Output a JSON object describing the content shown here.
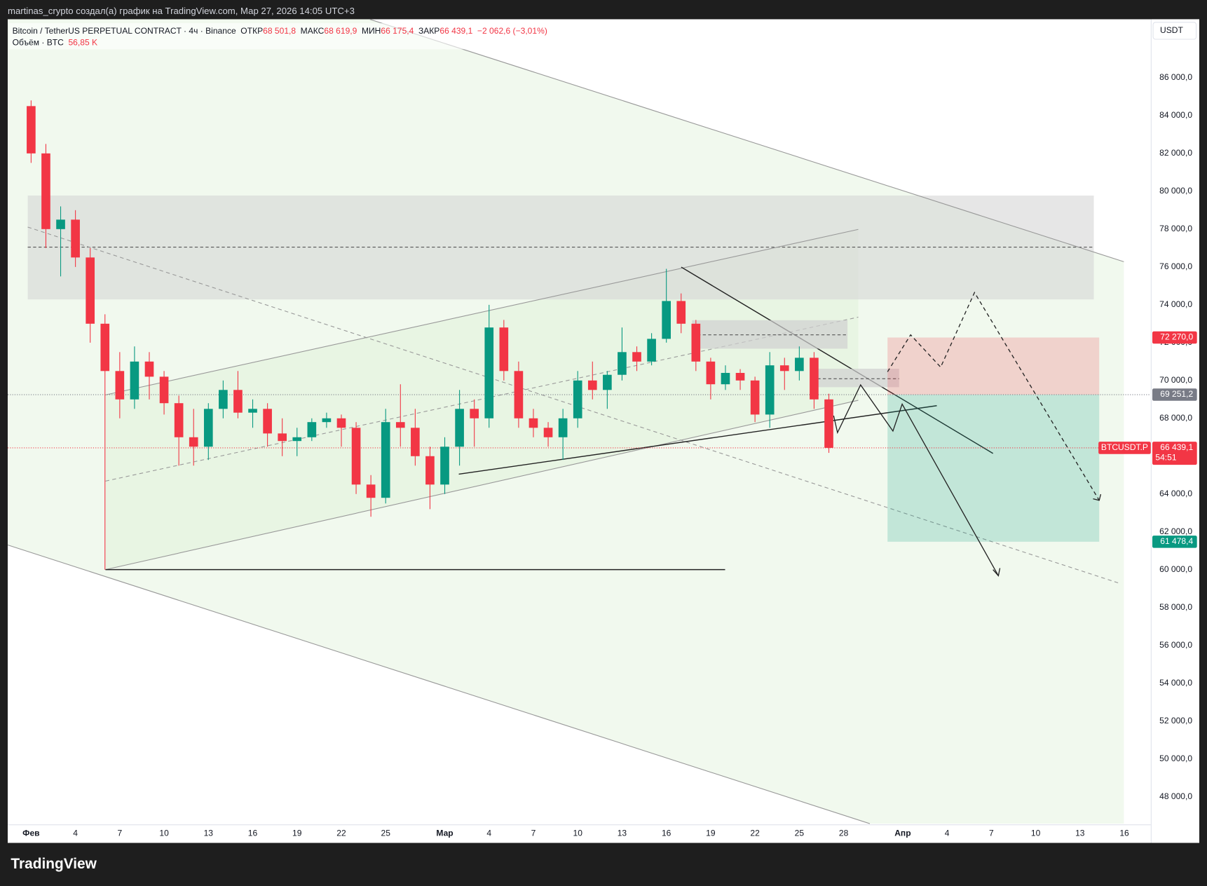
{
  "header": {
    "attribution": "martinas_crypto создал(а) график на TradingView.com, Мар 27, 2026 14:05 UTC+3",
    "logo": "TradingView"
  },
  "legend": {
    "symbol": "Bitcoin / TetherUS PERPETUAL CONTRACT · 4ч · Binance",
    "open_label": "ОТКР",
    "open": "68 501,8",
    "high_label": "МАКС",
    "high": "68 619,9",
    "low_label": "МИН",
    "low": "66 175,4",
    "close_label": "ЗАКР",
    "close": "66 439,1",
    "change": "−2 062,6 (−3,01%)",
    "volume_label": "Объём · BTC",
    "volume": "56,85 K"
  },
  "currency": "USDT",
  "chart_data": {
    "type": "candlestick",
    "up_color": "#089981",
    "down_color": "#f23645",
    "grid": false,
    "x": [
      "2026-02-01",
      "2026-02-02",
      "2026-02-03",
      "2026-02-04",
      "2026-02-05",
      "2026-02-06",
      "2026-02-07",
      "2026-02-08",
      "2026-02-09",
      "2026-02-10",
      "2026-02-11",
      "2026-02-12",
      "2026-02-13",
      "2026-02-14",
      "2026-02-15",
      "2026-02-16",
      "2026-02-17",
      "2026-02-18",
      "2026-02-19",
      "2026-02-20",
      "2026-02-21",
      "2026-02-22",
      "2026-02-23",
      "2026-02-24",
      "2026-02-25",
      "2026-02-26",
      "2026-02-27",
      "2026-02-28",
      "2026-03-01",
      "2026-03-02",
      "2026-03-03",
      "2026-03-04",
      "2026-03-05",
      "2026-03-06",
      "2026-03-07",
      "2026-03-08",
      "2026-03-09",
      "2026-03-10",
      "2026-03-11",
      "2026-03-12",
      "2026-03-13",
      "2026-03-14",
      "2026-03-15",
      "2026-03-16",
      "2026-03-17",
      "2026-03-18",
      "2026-03-19",
      "2026-03-20",
      "2026-03-21",
      "2026-03-22",
      "2026-03-23",
      "2026-03-24",
      "2026-03-25",
      "2026-03-26",
      "2026-03-27"
    ],
    "open": [
      84500,
      82000,
      78000,
      78500,
      76500,
      73000,
      70500,
      69000,
      71000,
      70200,
      68800,
      67000,
      66500,
      68500,
      69500,
      68300,
      68500,
      67200,
      66800,
      67000,
      67800,
      68000,
      67500,
      64500,
      63800,
      67800,
      67500,
      66000,
      64500,
      66500,
      68500,
      68000,
      72800,
      70500,
      68000,
      67500,
      67000,
      68000,
      70000,
      69500,
      70300,
      71500,
      71000,
      72200,
      74200,
      73000,
      71000,
      69800,
      70400,
      70000,
      68200,
      70800,
      70500,
      71200,
      69000
    ],
    "high": [
      84800,
      82500,
      79200,
      79000,
      77000,
      73500,
      71500,
      71800,
      71500,
      70500,
      69200,
      68500,
      68800,
      70000,
      70500,
      69000,
      68800,
      68000,
      67500,
      68000,
      68300,
      68200,
      67800,
      65000,
      68500,
      69800,
      68500,
      66500,
      67000,
      69500,
      69000,
      74000,
      73200,
      71000,
      68500,
      67800,
      68500,
      70500,
      71000,
      70500,
      72800,
      71800,
      72500,
      75900,
      74600,
      73200,
      71200,
      70800,
      70600,
      70200,
      71500,
      71200,
      71800,
      71500,
      69300
    ],
    "low": [
      81500,
      77000,
      75500,
      76000,
      72000,
      60000,
      68000,
      68500,
      69000,
      68200,
      65500,
      65500,
      65800,
      68000,
      68000,
      67500,
      66500,
      66000,
      66000,
      66800,
      67500,
      66500,
      64000,
      62800,
      63500,
      66500,
      65500,
      63200,
      64000,
      65500,
      66500,
      67500,
      70000,
      67500,
      67000,
      66500,
      65800,
      67500,
      69000,
      68500,
      70000,
      70500,
      70800,
      72000,
      72500,
      70500,
      69000,
      69500,
      69500,
      67800,
      67500,
      69500,
      70000,
      68500,
      66175.4
    ],
    "close": [
      82000,
      78000,
      78500,
      76500,
      73000,
      70500,
      69000,
      71000,
      70200,
      68800,
      67000,
      66500,
      68500,
      69500,
      68300,
      68500,
      67200,
      66800,
      67000,
      67800,
      68000,
      67500,
      64500,
      63800,
      67800,
      67500,
      66000,
      64500,
      66500,
      68500,
      68000,
      72800,
      70500,
      68000,
      67500,
      67000,
      68000,
      70000,
      69500,
      70300,
      71500,
      71000,
      72200,
      74200,
      73000,
      71000,
      69800,
      70400,
      70000,
      68200,
      70800,
      70500,
      71200,
      69000,
      66439.1
    ],
    "xlim": [
      "2026-01-30T10:00",
      "2026-04-17T19:00"
    ],
    "xticks": [
      {
        "value": "2026-02-01",
        "label": "Фев"
      },
      {
        "value": "2026-02-04",
        "label": "4"
      },
      {
        "value": "2026-02-07",
        "label": "7"
      },
      {
        "value": "2026-02-10",
        "label": "10"
      },
      {
        "value": "2026-02-13",
        "label": "13"
      },
      {
        "value": "2026-02-16",
        "label": "16"
      },
      {
        "value": "2026-02-19",
        "label": "19"
      },
      {
        "value": "2026-02-22",
        "label": "22"
      },
      {
        "value": "2026-02-25",
        "label": "25"
      },
      {
        "value": "2026-03-01",
        "label": "Мар"
      },
      {
        "value": "2026-03-04",
        "label": "4"
      },
      {
        "value": "2026-03-07",
        "label": "7"
      },
      {
        "value": "2026-03-10",
        "label": "10"
      },
      {
        "value": "2026-03-13",
        "label": "13"
      },
      {
        "value": "2026-03-16",
        "label": "16"
      },
      {
        "value": "2026-03-19",
        "label": "19"
      },
      {
        "value": "2026-03-22",
        "label": "22"
      },
      {
        "value": "2026-03-25",
        "label": "25"
      },
      {
        "value": "2026-03-28",
        "label": "28"
      },
      {
        "value": "2026-04-01",
        "label": "Апр"
      },
      {
        "value": "2026-04-04",
        "label": "4"
      },
      {
        "value": "2026-04-07",
        "label": "7"
      },
      {
        "value": "2026-04-10",
        "label": "10"
      },
      {
        "value": "2026-04-13",
        "label": "13"
      },
      {
        "value": "2026-04-16",
        "label": "16"
      }
    ],
    "ylim": [
      46580,
      89090
    ],
    "yticks": [
      {
        "value": 48000,
        "label": "48 000,0"
      },
      {
        "value": 50000,
        "label": "50 000,0"
      },
      {
        "value": 52000,
        "label": "52 000,0"
      },
      {
        "value": 54000,
        "label": "54 000,0"
      },
      {
        "value": 56000,
        "label": "56 000,0"
      },
      {
        "value": 58000,
        "label": "58 000,0"
      },
      {
        "value": 60000,
        "label": "60 000,0"
      },
      {
        "value": 62000,
        "label": "62 000,0"
      },
      {
        "value": 64000,
        "label": "64 000,0"
      },
      {
        "value": 66000,
        "label": "66 000,0"
      },
      {
        "value": 68000,
        "label": "68 000,0"
      },
      {
        "value": 70000,
        "label": "70 000,0"
      },
      {
        "value": 72000,
        "label": "72 000,0"
      },
      {
        "value": 74000,
        "label": "74 000,0"
      },
      {
        "value": 76000,
        "label": "76 000,0"
      },
      {
        "value": 78000,
        "label": "78 000,0"
      },
      {
        "value": 80000,
        "label": "80 000,0"
      },
      {
        "value": 82000,
        "label": "82 000,0"
      },
      {
        "value": 84000,
        "label": "84 000,0"
      },
      {
        "value": 86000,
        "label": "86 000,0"
      }
    ],
    "price_labels": {
      "stop": {
        "value": 72270,
        "label": "72 270,0",
        "color": "#f23645"
      },
      "entry": {
        "value": 69251.2,
        "label": "69 251,2",
        "color": "#787b86"
      },
      "last": {
        "name": "BTCUSDT.P",
        "value": 66439.1,
        "label": "66 439,1",
        "countdown": "54:51",
        "color": "#f23645"
      },
      "target": {
        "value": 61478.4,
        "label": "61 478,4",
        "color": "#089981"
      }
    }
  }
}
